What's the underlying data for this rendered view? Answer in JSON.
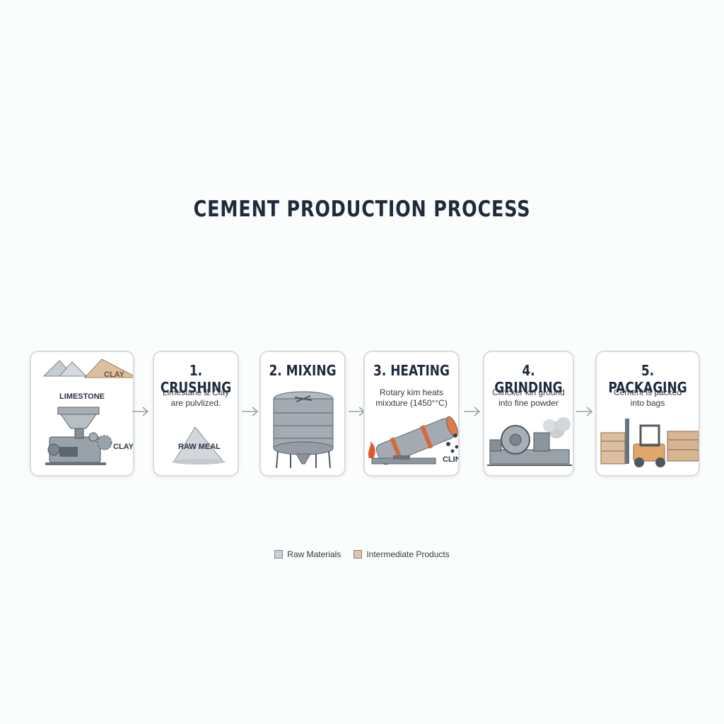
{
  "title": "CEMENT PRODUCTION PROCESS",
  "steps": [
    {
      "labels": {
        "limestone": "LIMESTONE",
        "clay_top": "CLAY",
        "clay_bottom": "CLAY"
      }
    },
    {
      "heading": "1. CRUSHING",
      "desc_line1": "Limestane & Clay",
      "desc_line2": "are pulvlized.",
      "product": "RAW MEAL"
    },
    {
      "heading": "2. MIXING"
    },
    {
      "heading": "3. HEATING",
      "desc_line1": "Rotary kim heats",
      "desc_line2": "mixxture (1450°°C)",
      "product": "CLINKER"
    },
    {
      "heading": "4. GRINDING",
      "desc_line1": "Clincker kin ground",
      "desc_line2": "into fine powder"
    },
    {
      "heading": "5. PACKAGING",
      "desc_line1": "Cement is packed",
      "desc_line2": "into bags"
    }
  ],
  "legend": [
    {
      "label": "Raw Materials",
      "color": "#c9ced3"
    },
    {
      "label": "Intermediate Products",
      "color": "#e2c4a2"
    }
  ],
  "colors": {
    "card_border": "#d8dcdf",
    "machine_gray": "#8c949c",
    "tan": "#d8b592",
    "flame": "#e0552a",
    "forklift": "#e0a66a"
  }
}
